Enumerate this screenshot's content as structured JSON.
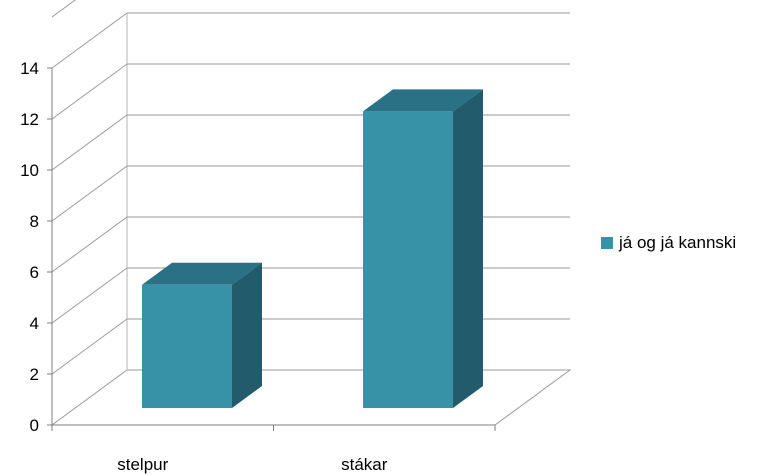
{
  "chart_data": {
    "type": "bar",
    "categories": [
      "stelpur",
      "stákar"
    ],
    "series": [
      {
        "name": "já og já kannski",
        "values": [
          5.5,
          12.3
        ],
        "color": "#3792a8"
      }
    ],
    "ylim": [
      0,
      14
    ],
    "yticks": [
      "0",
      "2",
      "4",
      "6",
      "8",
      "10",
      "12",
      "14"
    ],
    "grid": true,
    "style": "3d-column",
    "legend_position": "right"
  }
}
